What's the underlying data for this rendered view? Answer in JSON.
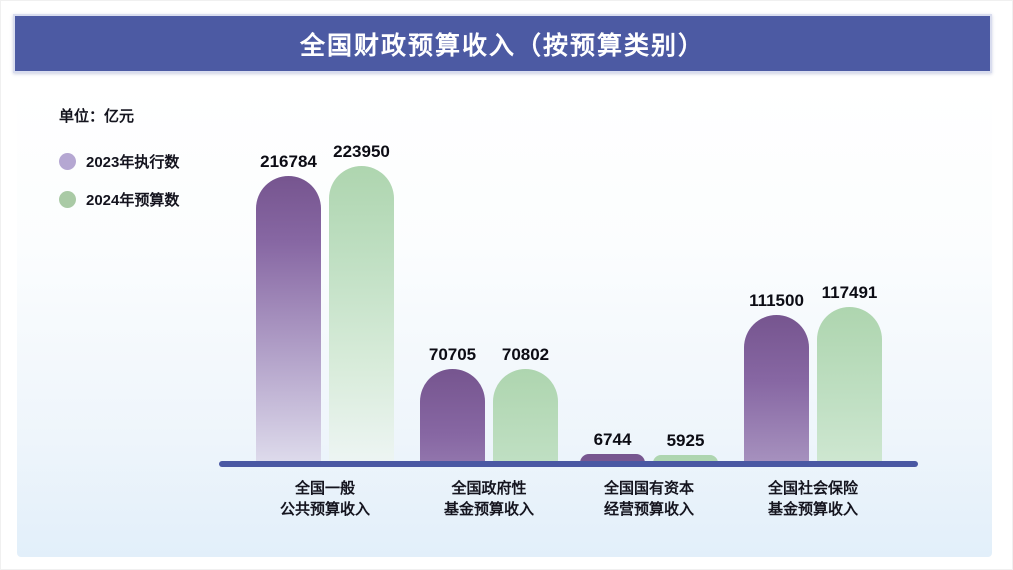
{
  "header": {
    "title": "全国财政预算收入（按预算类别）"
  },
  "unit_label": "单位：亿元",
  "legend": [
    {
      "label": "2023年执行数",
      "color": "#b5a7d2"
    },
    {
      "label": "2024年预算数",
      "color": "#a9caa5"
    }
  ],
  "chart_data": {
    "type": "bar",
    "title": "全国财政预算收入（按预算类别）",
    "ylabel": "亿元",
    "xlabel": "",
    "ylim": [
      0,
      223950
    ],
    "grid": false,
    "legend_position": "top-left",
    "categories": [
      {
        "line1": "全国一般",
        "line2": "公共预算收入"
      },
      {
        "line1": "全国政府性",
        "line2": "基金预算收入"
      },
      {
        "line1": "全国国有资本",
        "line2": "经营预算收入"
      },
      {
        "line1": "全国社会保险",
        "line2": "基金预算收入"
      }
    ],
    "series": [
      {
        "name": "2023年执行数",
        "color": "#7a5b97",
        "values": [
          216784,
          70705,
          6744,
          111500
        ]
      },
      {
        "name": "2024年预算数",
        "color": "#b3d9b4",
        "values": [
          223950,
          70802,
          5925,
          117491
        ]
      }
    ]
  }
}
